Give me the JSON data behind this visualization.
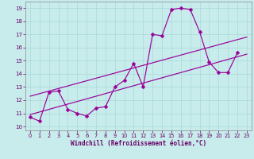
{
  "xlabel": "Windchill (Refroidissement éolien,°C)",
  "bg_color": "#c8ecec",
  "grid_color": "#a8d8d8",
  "line_color": "#990099",
  "tick_color": "#660066",
  "xlim_min": -0.5,
  "xlim_max": 23.5,
  "ylim_min": 9.7,
  "ylim_max": 19.5,
  "xticks": [
    0,
    1,
    2,
    3,
    4,
    5,
    6,
    7,
    8,
    9,
    10,
    11,
    12,
    13,
    14,
    15,
    16,
    17,
    18,
    19,
    20,
    21,
    22,
    23
  ],
  "yticks": [
    10,
    11,
    12,
    13,
    14,
    15,
    16,
    17,
    18,
    19
  ],
  "main_x": [
    0,
    1,
    2,
    3,
    4,
    5,
    6,
    7,
    8,
    9,
    10,
    11,
    12,
    13,
    14,
    15,
    16,
    17,
    18,
    19,
    20,
    21,
    22
  ],
  "main_y": [
    10.7,
    10.4,
    12.6,
    12.7,
    11.3,
    11.0,
    10.8,
    11.4,
    11.5,
    13.0,
    13.5,
    14.8,
    13.0,
    17.0,
    16.9,
    18.9,
    19.0,
    18.9,
    17.2,
    14.9,
    14.1,
    14.1,
    15.6
  ],
  "trend1_x": [
    0,
    23
  ],
  "trend1_y": [
    10.9,
    15.5
  ],
  "trend2_x": [
    0,
    23
  ],
  "trend2_y": [
    12.3,
    16.8
  ],
  "xlabel_fontsize": 5.5,
  "tick_fontsize": 4.8,
  "linewidth": 0.85,
  "markersize": 2.5
}
